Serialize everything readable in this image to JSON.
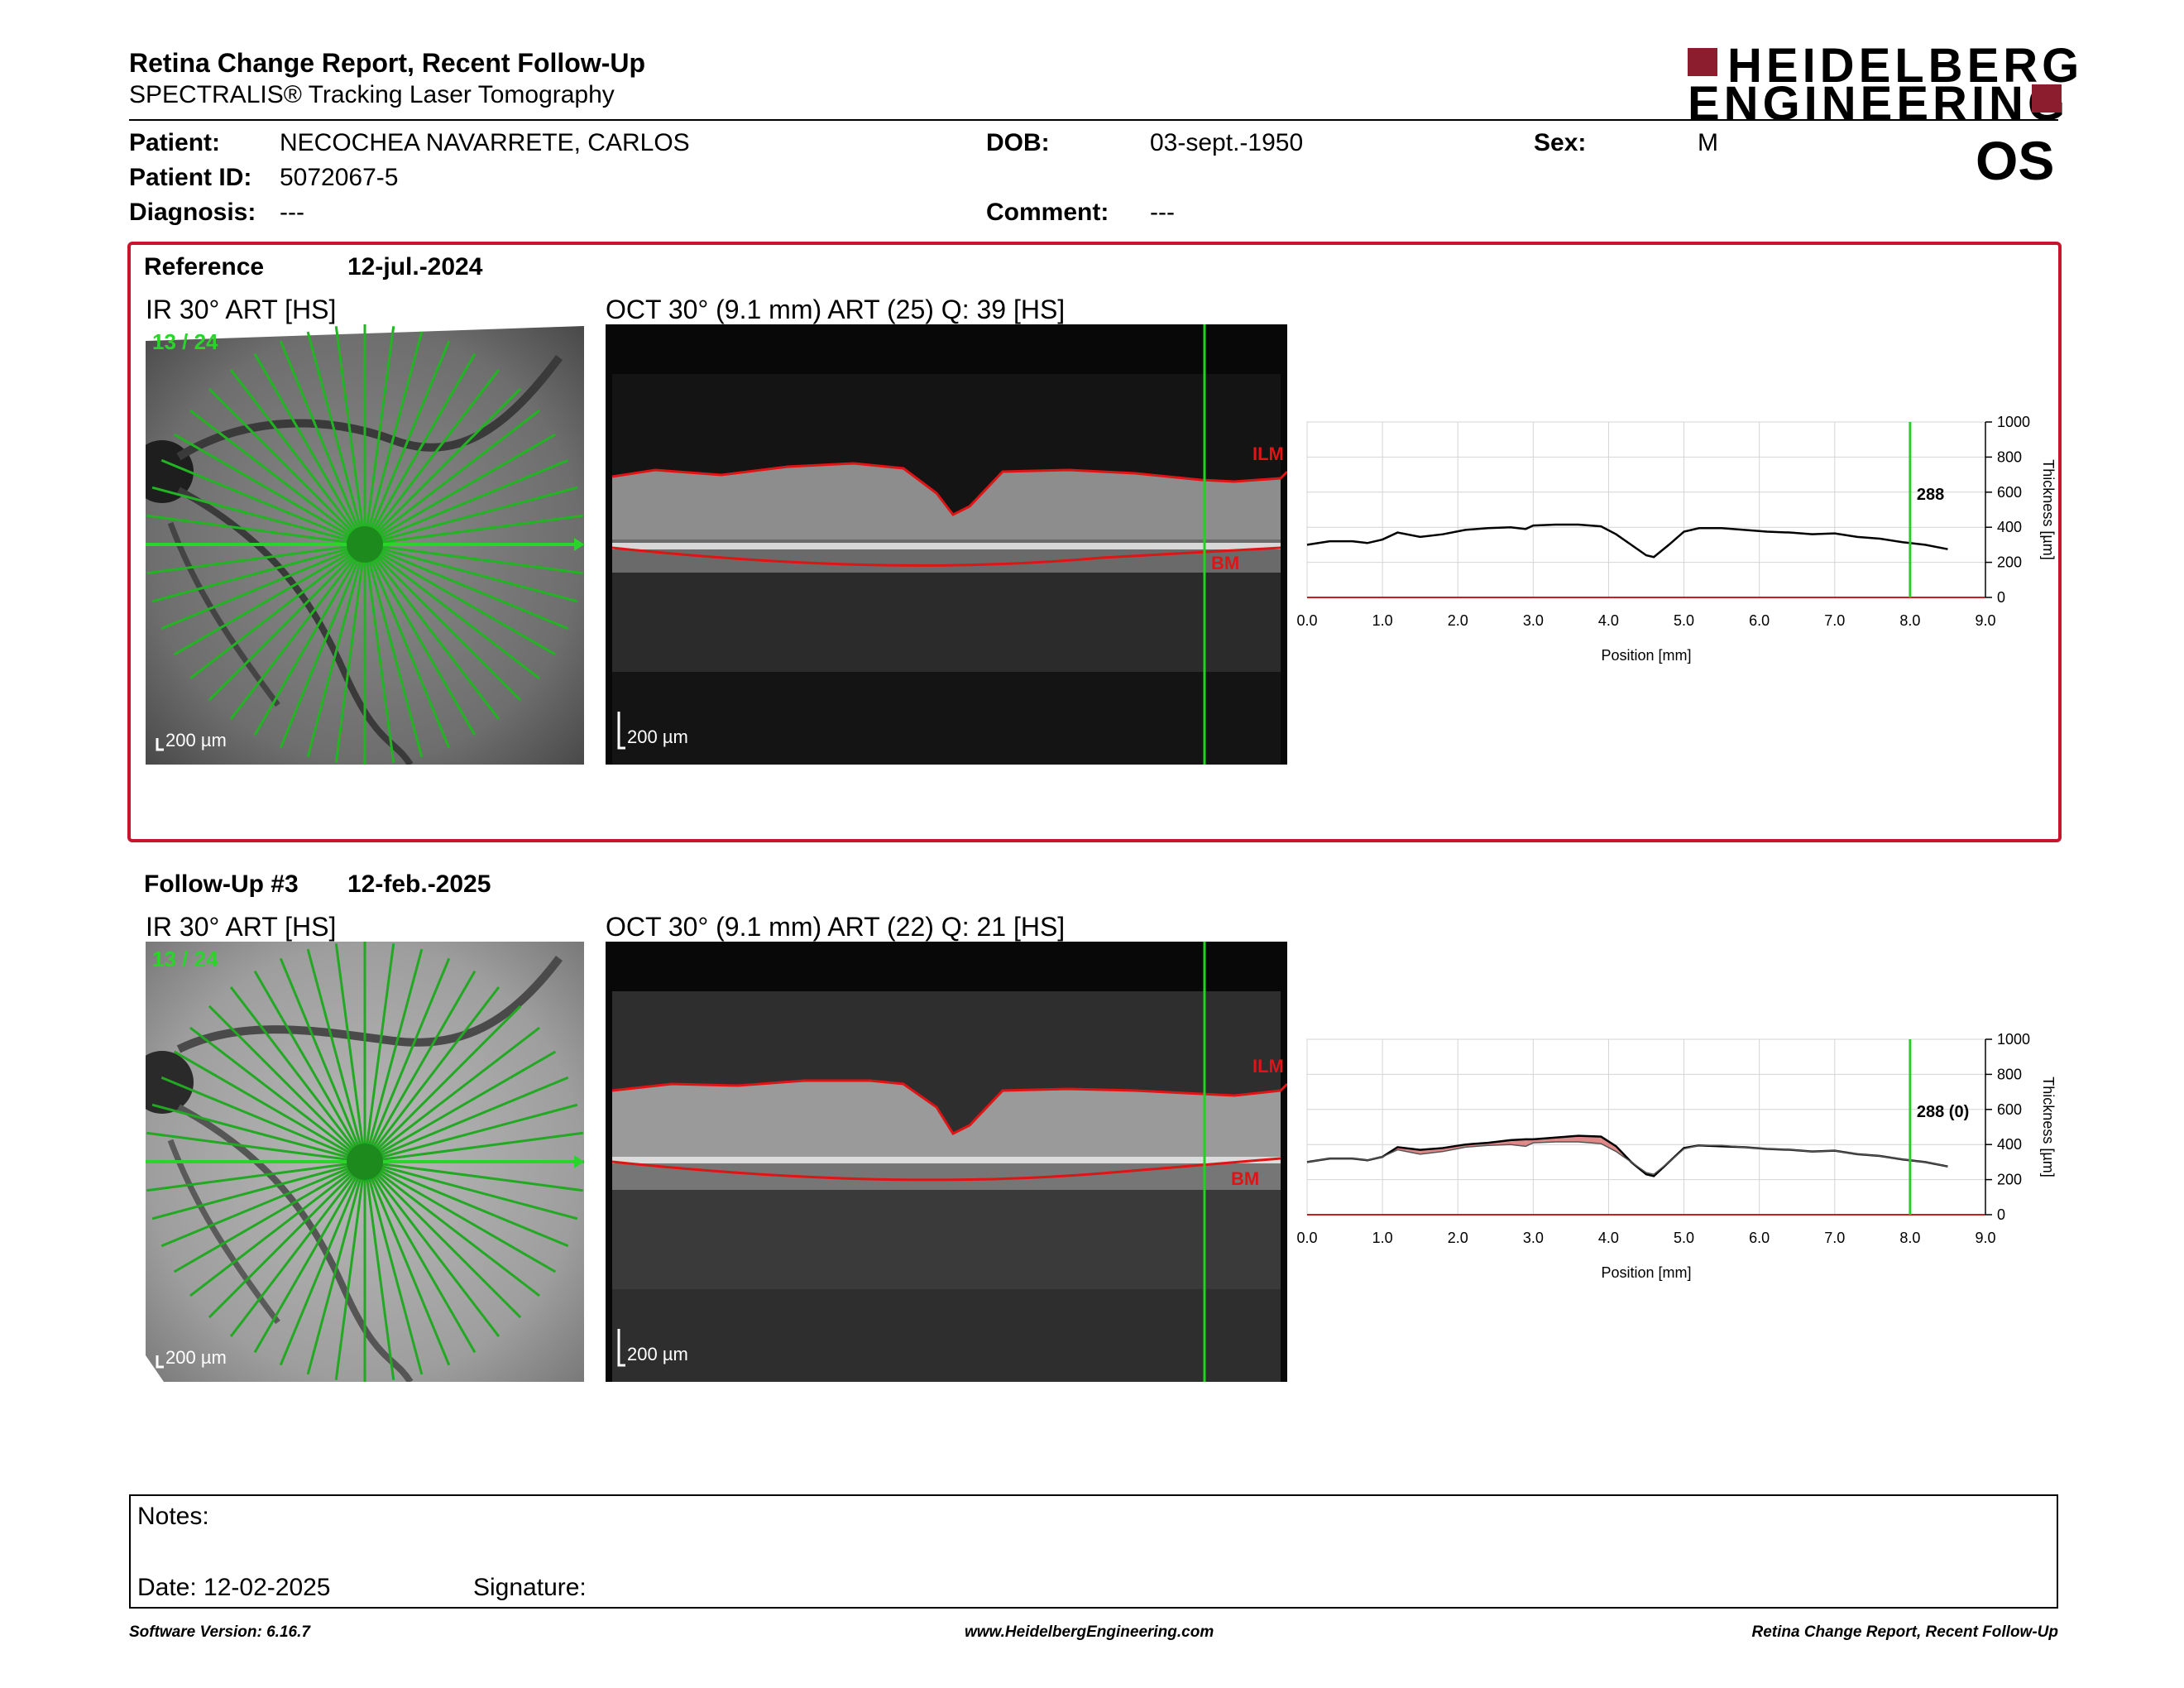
{
  "report": {
    "title": "Retina Change Report, Recent Follow-Up",
    "subtitle": "SPECTRALIS® Tracking Laser Tomography",
    "logo_line1": "HEIDELBERG",
    "logo_line2": "ENGINEERING",
    "eye": "OS"
  },
  "patient": {
    "name_label": "Patient:",
    "name": "NECOCHEA NAVARRETE, CARLOS",
    "id_label": "Patient ID:",
    "id": "5072067-5",
    "diagnosis_label": "Diagnosis:",
    "diagnosis": "---",
    "dob_label": "DOB:",
    "dob": "03-sept.-1950",
    "comment_label": "Comment:",
    "comment": "---",
    "sex_label": "Sex:",
    "sex": "M"
  },
  "reference": {
    "label": "Reference",
    "date": "12-jul.-2024",
    "ir_title": "IR 30° ART [HS]",
    "scan_index": "13 / 24",
    "ir_scale": "200 µm",
    "oct_title": "OCT 30° (9.1 mm) ART (25) Q: 39 [HS]",
    "oct_scale": "200 µm",
    "ilm_label": "ILM",
    "bm_label": "BM"
  },
  "followup": {
    "label": "Follow-Up #3",
    "date": "12-feb.-2025",
    "ir_title": "IR 30° ART [HS]",
    "scan_index": "13 / 24",
    "ir_scale": "200 µm",
    "oct_title": "OCT 30° (9.1 mm) ART (22) Q: 21 [HS]",
    "oct_scale": "200 µm",
    "ilm_label": "ILM",
    "bm_label": "BM"
  },
  "colors": {
    "brand": "#8b1d2e",
    "frame_red": "#c8142d",
    "scan_green": "#22c722",
    "cursor_green": "#1fd41f",
    "seg_red": "#e01414"
  },
  "chart_data": [
    {
      "type": "line",
      "xlabel": "Position [mm]",
      "ylabel": "Thickness [µm]",
      "xlim": [
        0,
        9
      ],
      "ylim": [
        0,
        1000
      ],
      "xticks": [
        "0.0",
        "1.0",
        "2.0",
        "3.0",
        "4.0",
        "5.0",
        "6.0",
        "7.0",
        "8.0",
        "9.0"
      ],
      "yticks": [
        "0",
        "200",
        "400",
        "600",
        "800",
        "1000"
      ],
      "grid": true,
      "cursor_x": 8.0,
      "cursor_label": "288",
      "series": [
        {
          "x": [
            0,
            0.3,
            0.6,
            0.8,
            1.0,
            1.2,
            1.5,
            1.8,
            2.1,
            2.4,
            2.7,
            2.9,
            3.0,
            3.3,
            3.6,
            3.9,
            4.1,
            4.3,
            4.5,
            4.6,
            4.8,
            5.0,
            5.2,
            5.5,
            5.8,
            6.1,
            6.4,
            6.7,
            7.0,
            7.3,
            7.6,
            7.9,
            8.2,
            8.5
          ],
          "y": [
            300,
            320,
            320,
            310,
            330,
            370,
            345,
            360,
            385,
            395,
            400,
            390,
            410,
            415,
            415,
            405,
            360,
            300,
            240,
            230,
            300,
            375,
            395,
            395,
            385,
            375,
            370,
            360,
            365,
            345,
            335,
            315,
            300,
            275
          ]
        }
      ]
    },
    {
      "type": "line",
      "xlabel": "Position [mm]",
      "ylabel": "Thickness [µm]",
      "xlim": [
        0,
        9
      ],
      "ylim": [
        0,
        1000
      ],
      "xticks": [
        "0.0",
        "1.0",
        "2.0",
        "3.0",
        "4.0",
        "5.0",
        "6.0",
        "7.0",
        "8.0",
        "9.0"
      ],
      "yticks": [
        "0",
        "200",
        "400",
        "600",
        "800",
        "1000"
      ],
      "grid": true,
      "cursor_x": 8.0,
      "cursor_label": "288 (0)",
      "series": [
        {
          "x": [
            0,
            0.3,
            0.6,
            0.8,
            1.0,
            1.2,
            1.5,
            1.8,
            2.1,
            2.4,
            2.7,
            2.9,
            3.0,
            3.3,
            3.6,
            3.9,
            4.1,
            4.3,
            4.5,
            4.6,
            4.8,
            5.0,
            5.2,
            5.5,
            5.8,
            6.1,
            6.4,
            6.7,
            7.0,
            7.3,
            7.6,
            7.9,
            8.2,
            8.5
          ],
          "y": [
            300,
            320,
            320,
            310,
            330,
            385,
            370,
            380,
            400,
            410,
            425,
            430,
            430,
            440,
            450,
            445,
            390,
            300,
            230,
            220,
            300,
            380,
            395,
            390,
            385,
            375,
            370,
            360,
            365,
            345,
            335,
            315,
            300,
            275
          ]
        },
        {
          "x": [
            0,
            0.3,
            0.6,
            0.8,
            1.0,
            1.2,
            1.5,
            1.8,
            2.1,
            2.4,
            2.7,
            2.9,
            3.0,
            3.3,
            3.6,
            3.9,
            4.1,
            4.3,
            4.5,
            4.6,
            4.8,
            5.0,
            5.2,
            5.5,
            5.8,
            6.1,
            6.4,
            6.7,
            7.0,
            7.3,
            7.6,
            7.9,
            8.2,
            8.5
          ],
          "y": [
            300,
            320,
            320,
            310,
            330,
            370,
            345,
            360,
            385,
            395,
            400,
            390,
            410,
            415,
            415,
            405,
            360,
            300,
            240,
            230,
            300,
            375,
            395,
            395,
            385,
            375,
            370,
            360,
            365,
            345,
            335,
            315,
            300,
            275
          ]
        }
      ]
    }
  ],
  "notes": {
    "notes_label": "Notes:",
    "date_label": "Date: 12-02-2025",
    "signature_label": "Signature:"
  },
  "footer": {
    "version": "Software Version: 6.16.7",
    "website": "www.HeidelbergEngineering.com",
    "report_name": "Retina Change Report, Recent Follow-Up"
  }
}
